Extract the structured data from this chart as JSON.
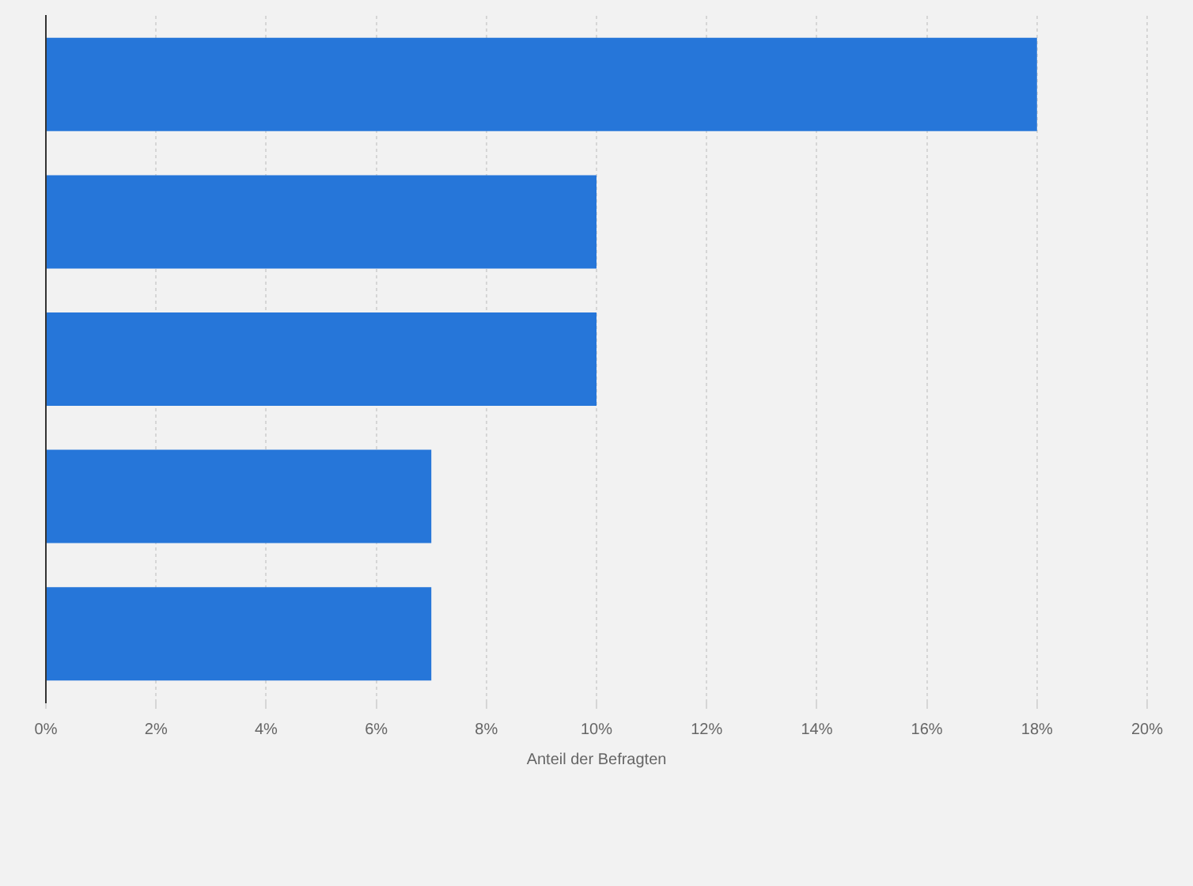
{
  "chart_data": {
    "type": "bar",
    "orientation": "horizontal",
    "categories": [
      null,
      null,
      null,
      null,
      null
    ],
    "values": [
      18,
      10,
      10,
      7,
      7
    ],
    "color": "#2676d9",
    "xlabel": "Anteil der Befragten",
    "xlim": [
      0,
      20
    ],
    "xticks": [
      {
        "value": 0,
        "label": "0%"
      },
      {
        "value": 2,
        "label": "2%"
      },
      {
        "value": 4,
        "label": "4%"
      },
      {
        "value": 6,
        "label": "6%"
      },
      {
        "value": 8,
        "label": "8%"
      },
      {
        "value": 10,
        "label": "10%"
      },
      {
        "value": 12,
        "label": "12%"
      },
      {
        "value": 14,
        "label": "14%"
      },
      {
        "value": 16,
        "label": "16%"
      },
      {
        "value": 18,
        "label": "18%"
      },
      {
        "value": 20,
        "label": "20%"
      }
    ],
    "grid": "x"
  }
}
